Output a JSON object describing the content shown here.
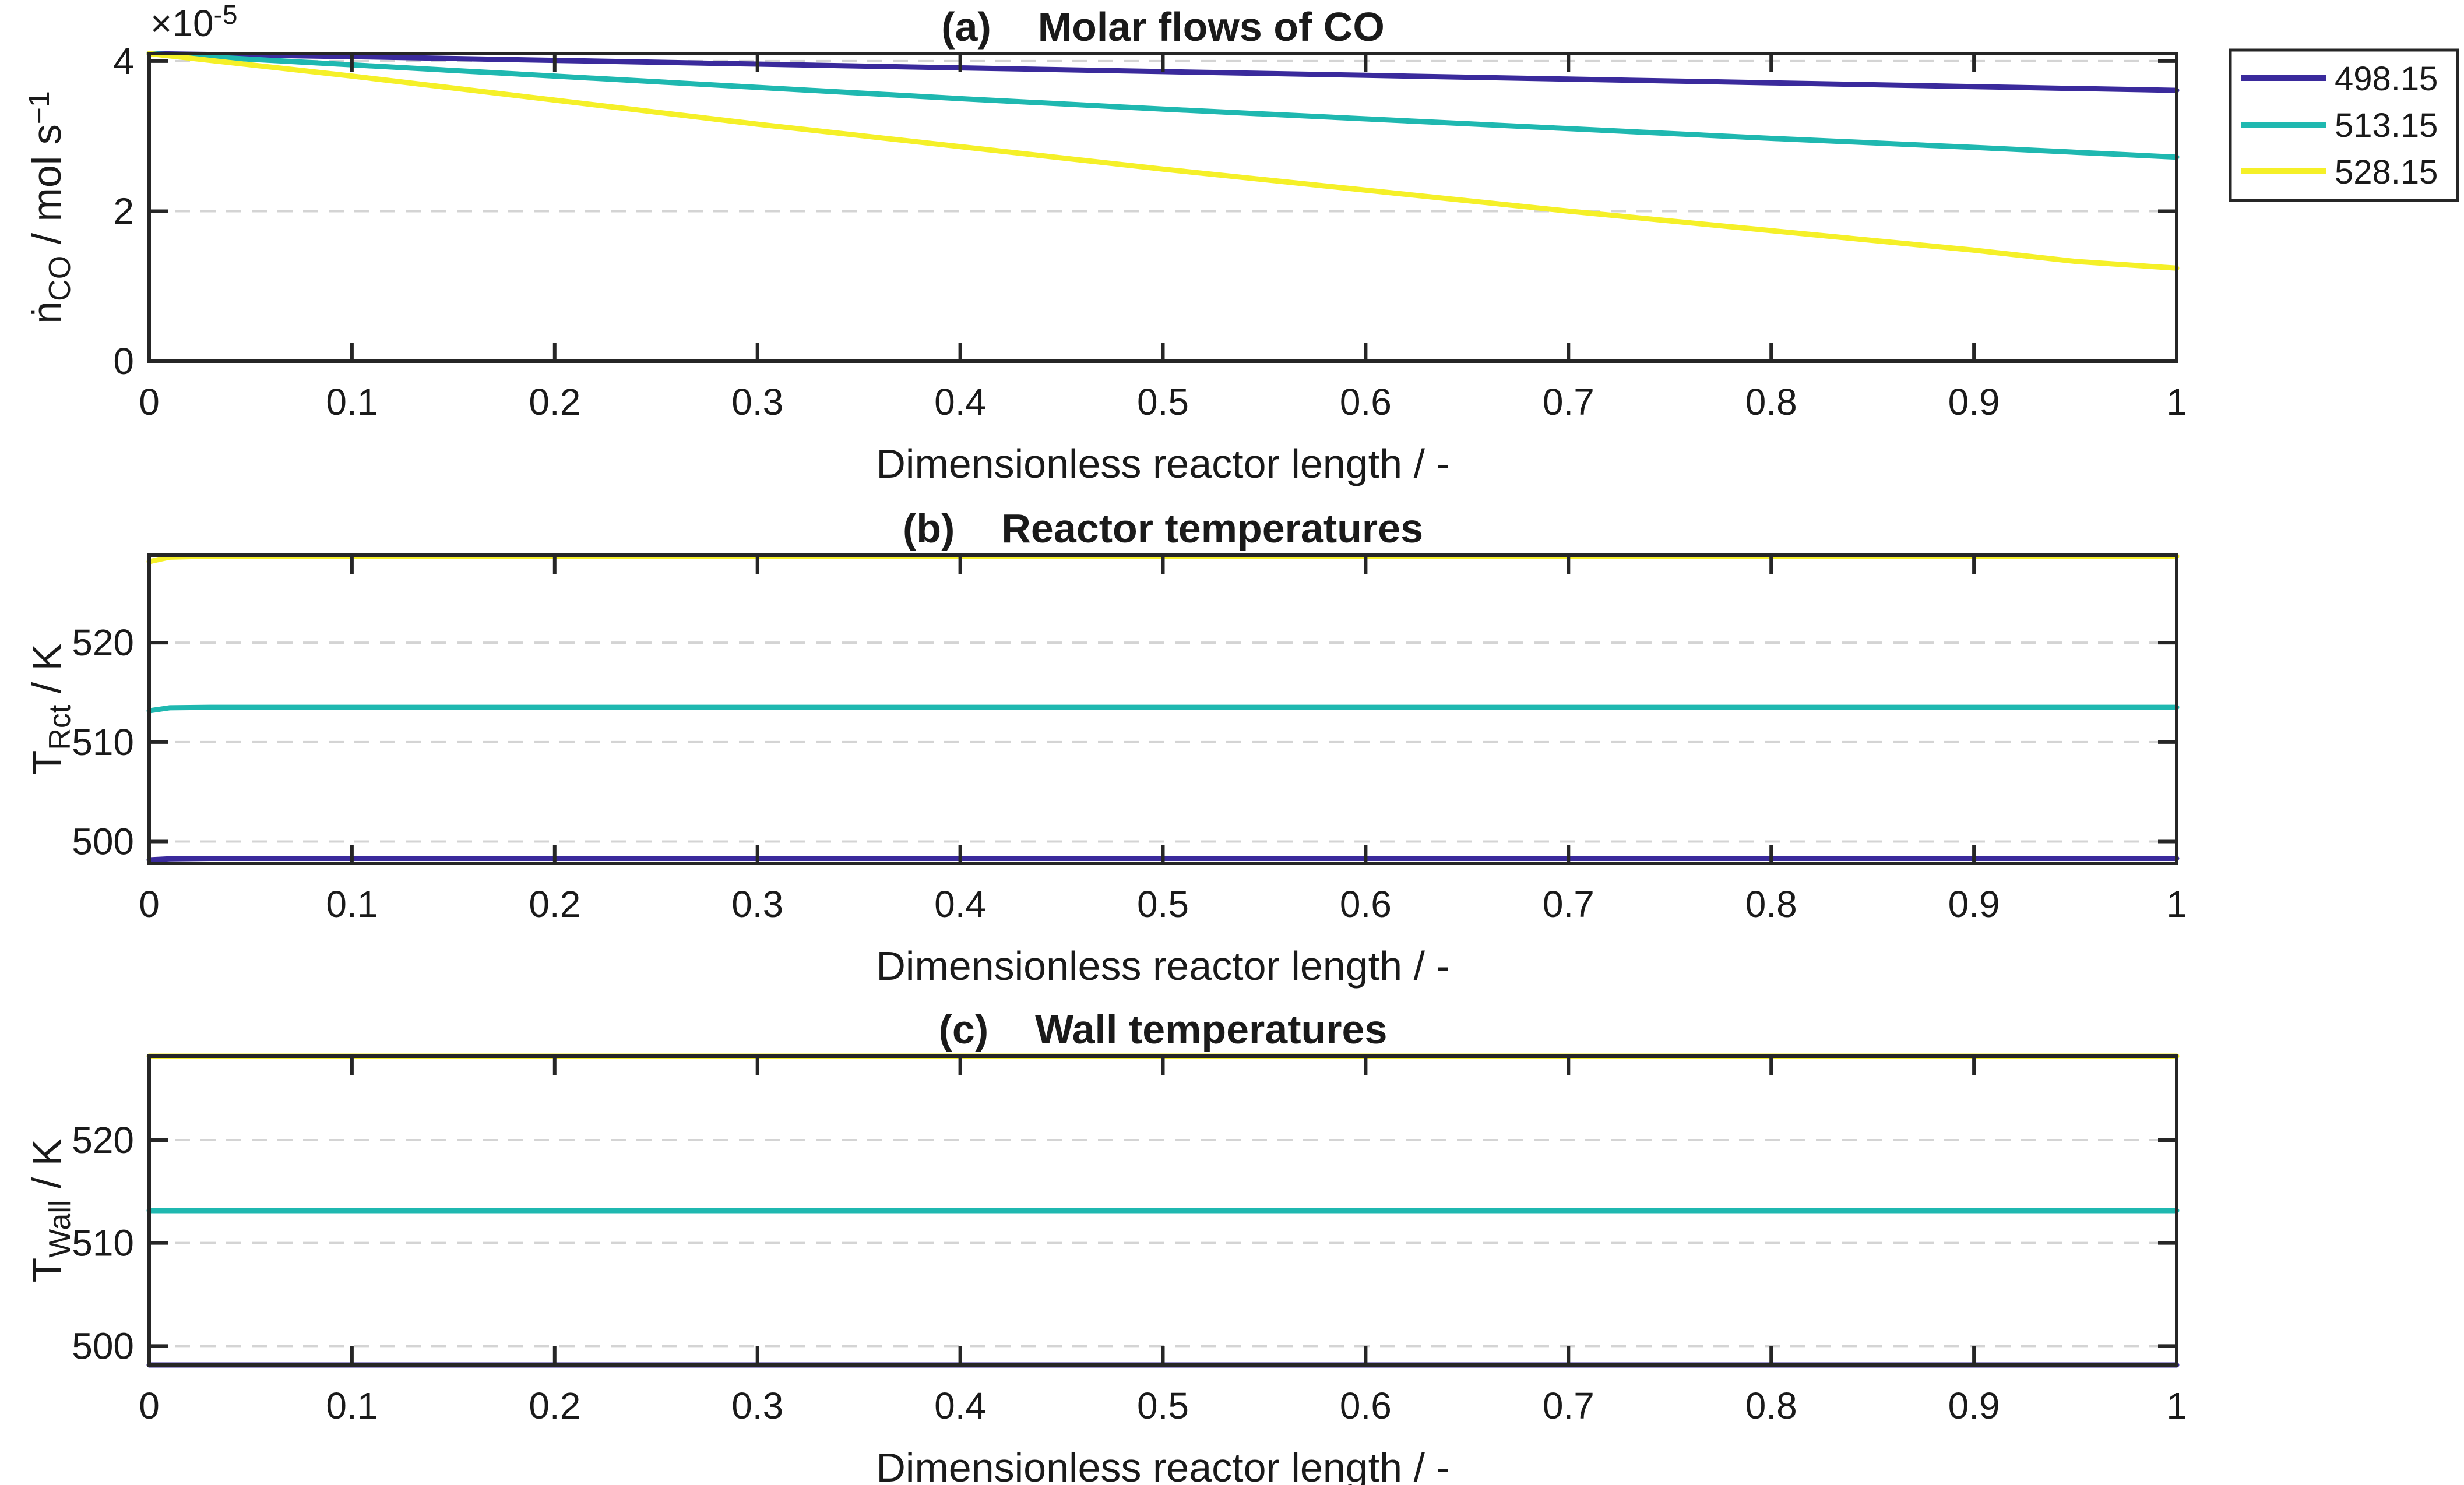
{
  "legend": {
    "placement": "outside-right",
    "entries": [
      {
        "label": "498.15",
        "color": "#3a2a9c"
      },
      {
        "label": "513.15",
        "color": "#1fb8b0"
      },
      {
        "label": "528.15",
        "color": "#f5f028"
      }
    ]
  },
  "chart_data": [
    {
      "type": "line",
      "title_letter": "(a)",
      "title_text": "Molar flows of CO",
      "xlabel": "Dimensionless reactor length / -",
      "ylabel_main": "ṅ",
      "ylabel_sub": "CO",
      "ylabel_unit": " / mol s",
      "ylabel_sup": "−1",
      "y_multiplier": "×10",
      "y_multiplier_exp": "-5",
      "xlim": [
        0,
        1
      ],
      "ylim": [
        0,
        4.1
      ],
      "x_ticks": [
        0,
        0.1,
        0.2,
        0.3,
        0.4,
        0.5,
        0.6,
        0.7,
        0.8,
        0.9,
        1
      ],
      "y_ticks": [
        0,
        2,
        4
      ],
      "grid": "y-dashed",
      "series": [
        {
          "name": "498.15",
          "color": "#3a2a9c",
          "x": [
            0,
            0.1,
            0.2,
            0.3,
            0.4,
            0.5,
            0.6,
            0.7,
            0.8,
            0.9,
            1
          ],
          "y": [
            4.1,
            4.06,
            4.01,
            3.96,
            3.91,
            3.86,
            3.81,
            3.76,
            3.71,
            3.66,
            3.61
          ]
        },
        {
          "name": "513.15",
          "color": "#1fb8b0",
          "x": [
            0,
            0.1,
            0.2,
            0.3,
            0.4,
            0.5,
            0.6,
            0.7,
            0.8,
            0.9,
            1
          ],
          "y": [
            4.1,
            3.95,
            3.8,
            3.65,
            3.5,
            3.36,
            3.23,
            3.1,
            2.97,
            2.85,
            2.72
          ]
        },
        {
          "name": "528.15",
          "color": "#f5f028",
          "x": [
            0,
            0.1,
            0.2,
            0.3,
            0.4,
            0.5,
            0.6,
            0.7,
            0.8,
            0.9,
            0.95,
            1
          ],
          "y": [
            4.1,
            3.8,
            3.48,
            3.16,
            2.86,
            2.56,
            2.28,
            2.0,
            1.74,
            1.48,
            1.33,
            1.24
          ]
        }
      ]
    },
    {
      "type": "line",
      "title_letter": "(b)",
      "title_text": "Reactor temperatures",
      "xlabel": "Dimensionless reactor length / -",
      "ylabel_main": "T",
      "ylabel_sub": "Rct",
      "ylabel_unit": " / K",
      "xlim": [
        0,
        1
      ],
      "ylim": [
        497.8,
        528.8
      ],
      "x_ticks": [
        0,
        0.1,
        0.2,
        0.3,
        0.4,
        0.5,
        0.6,
        0.7,
        0.8,
        0.9,
        1
      ],
      "y_ticks": [
        500,
        510,
        520
      ],
      "grid": "y-dashed",
      "series": [
        {
          "name": "498.15",
          "color": "#3a2a9c",
          "x": [
            0,
            0.01,
            0.03,
            1
          ],
          "y": [
            498.15,
            498.25,
            498.3,
            498.3
          ]
        },
        {
          "name": "513.15",
          "color": "#1fb8b0",
          "x": [
            0,
            0.01,
            0.03,
            1
          ],
          "y": [
            513.15,
            513.45,
            513.5,
            513.5
          ]
        },
        {
          "name": "528.15",
          "color": "#f5f028",
          "x": [
            0,
            0.01,
            0.03,
            1
          ],
          "y": [
            528.15,
            528.6,
            528.7,
            528.7
          ]
        }
      ]
    },
    {
      "type": "line",
      "title_letter": "(c)",
      "title_text": "Wall temperatures",
      "xlabel": "Dimensionless reactor length / -",
      "ylabel_main": "T",
      "ylabel_sub": "Wall",
      "ylabel_unit": " / K",
      "xlim": [
        0,
        1
      ],
      "ylim": [
        498.15,
        528.15
      ],
      "x_ticks": [
        0,
        0.1,
        0.2,
        0.3,
        0.4,
        0.5,
        0.6,
        0.7,
        0.8,
        0.9,
        1
      ],
      "y_ticks": [
        500,
        510,
        520
      ],
      "grid": "y-dashed",
      "series": [
        {
          "name": "498.15",
          "color": "#3a2a9c",
          "x": [
            0,
            1
          ],
          "y": [
            498.15,
            498.15
          ]
        },
        {
          "name": "513.15",
          "color": "#1fb8b0",
          "x": [
            0,
            1
          ],
          "y": [
            513.15,
            513.15
          ]
        },
        {
          "name": "528.15",
          "color": "#f5f028",
          "x": [
            0,
            1
          ],
          "y": [
            528.15,
            528.15
          ]
        }
      ]
    }
  ]
}
